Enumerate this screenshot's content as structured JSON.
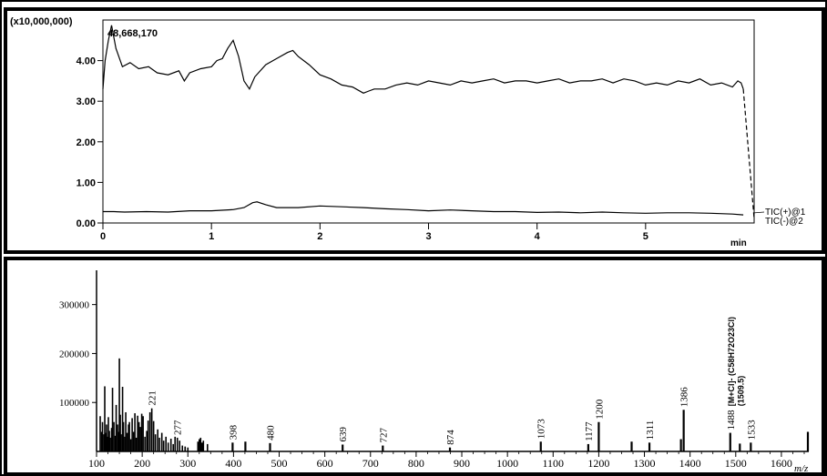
{
  "chart_data": [
    {
      "type": "line",
      "title": "",
      "xlabel": "min",
      "ylabel": "",
      "y_scale_note": "(x10,000,000)",
      "peak_annotation": "48,668,170",
      "xlim": [
        0,
        6.0
      ],
      "ylim": [
        0,
        5.0
      ],
      "x_ticks": [
        0,
        1,
        2,
        3,
        4,
        5
      ],
      "y_ticks": [
        0,
        1,
        2,
        3,
        4
      ],
      "y_tick_labels": [
        "0.00",
        "1.00",
        "2.00",
        "3.00",
        "4.00"
      ],
      "grid": false,
      "legend_position": "right",
      "series": [
        {
          "name": "TIC(+)@1",
          "x": [
            0.0,
            0.02,
            0.05,
            0.08,
            0.12,
            0.18,
            0.25,
            0.33,
            0.42,
            0.5,
            0.6,
            0.7,
            0.75,
            0.8,
            0.9,
            1.0,
            1.05,
            1.1,
            1.15,
            1.2,
            1.25,
            1.3,
            1.35,
            1.4,
            1.5,
            1.6,
            1.7,
            1.75,
            1.8,
            1.9,
            2.0,
            2.1,
            2.2,
            2.3,
            2.4,
            2.45,
            2.5,
            2.6,
            2.7,
            2.8,
            2.9,
            3.0,
            3.1,
            3.2,
            3.3,
            3.4,
            3.5,
            3.6,
            3.7,
            3.8,
            3.9,
            4.0,
            4.1,
            4.2,
            4.3,
            4.4,
            4.5,
            4.6,
            4.7,
            4.8,
            4.9,
            5.0,
            5.1,
            5.2,
            5.3,
            5.4,
            5.5,
            5.6,
            5.7,
            5.8,
            5.85,
            5.88,
            5.9,
            6.0
          ],
          "y": [
            3.3,
            4.0,
            4.5,
            4.87,
            4.3,
            3.85,
            3.95,
            3.8,
            3.85,
            3.7,
            3.65,
            3.75,
            3.5,
            3.7,
            3.8,
            3.85,
            4.0,
            4.05,
            4.3,
            4.5,
            4.1,
            3.5,
            3.3,
            3.6,
            3.9,
            4.05,
            4.2,
            4.25,
            4.1,
            3.9,
            3.65,
            3.55,
            3.4,
            3.35,
            3.2,
            3.25,
            3.3,
            3.3,
            3.4,
            3.45,
            3.4,
            3.5,
            3.45,
            3.4,
            3.5,
            3.45,
            3.5,
            3.55,
            3.45,
            3.5,
            3.5,
            3.45,
            3.5,
            3.55,
            3.45,
            3.5,
            3.5,
            3.55,
            3.45,
            3.55,
            3.5,
            3.4,
            3.45,
            3.4,
            3.5,
            3.45,
            3.55,
            3.4,
            3.45,
            3.35,
            3.5,
            3.45,
            3.3,
            0.1
          ]
        },
        {
          "name": "TIC(-)@2",
          "x": [
            0.0,
            0.1,
            0.2,
            0.4,
            0.6,
            0.8,
            1.0,
            1.2,
            1.3,
            1.38,
            1.42,
            1.5,
            1.6,
            1.8,
            2.0,
            2.2,
            2.4,
            2.6,
            2.8,
            3.0,
            3.2,
            3.4,
            3.6,
            3.8,
            4.0,
            4.2,
            4.4,
            4.6,
            4.8,
            5.0,
            5.2,
            5.4,
            5.6,
            5.8,
            5.9
          ],
          "y": [
            0.28,
            0.28,
            0.27,
            0.28,
            0.27,
            0.3,
            0.3,
            0.33,
            0.38,
            0.5,
            0.52,
            0.45,
            0.38,
            0.38,
            0.42,
            0.4,
            0.38,
            0.35,
            0.33,
            0.3,
            0.32,
            0.3,
            0.28,
            0.28,
            0.26,
            0.27,
            0.25,
            0.27,
            0.25,
            0.24,
            0.25,
            0.25,
            0.24,
            0.22,
            0.2
          ]
        }
      ]
    },
    {
      "type": "bar",
      "title": "",
      "xlabel": "m/z",
      "ylabel": "",
      "xlim": [
        100,
        1660
      ],
      "ylim": [
        0,
        370000
      ],
      "x_ticks": [
        100,
        200,
        300,
        400,
        500,
        600,
        700,
        800,
        900,
        1000,
        1100,
        1200,
        1300,
        1400,
        1500,
        1600
      ],
      "y_ticks": [
        100000,
        200000,
        300000
      ],
      "grid": false,
      "labeled_peaks": [
        {
          "mz": 221,
          "label": "221"
        },
        {
          "mz": 277,
          "label": "277"
        },
        {
          "mz": 398,
          "label": "398"
        },
        {
          "mz": 480,
          "label": "480"
        },
        {
          "mz": 639,
          "label": "639"
        },
        {
          "mz": 727,
          "label": "727"
        },
        {
          "mz": 874,
          "label": "874"
        },
        {
          "mz": 1073,
          "label": "1073"
        },
        {
          "mz": 1177,
          "label": "1177"
        },
        {
          "mz": 1200,
          "label": "1200"
        },
        {
          "mz": 1311,
          "label": "1311"
        },
        {
          "mz": 1386,
          "label": "1386"
        },
        {
          "mz": 1488,
          "label": "1488"
        },
        {
          "mz": 1533,
          "label": "1533"
        }
      ],
      "extra_annotations": [
        "[M+Cl]- (C58H72O23Cl)",
        "(1509.5)"
      ],
      "peaks_mz": [
        108,
        111,
        113,
        116,
        118,
        120,
        122,
        124,
        126,
        128,
        130,
        133,
        135,
        138,
        141,
        143,
        146,
        148,
        150,
        152,
        154,
        157,
        159,
        162,
        164,
        167,
        170,
        172,
        175,
        178,
        181,
        184,
        187,
        190,
        193,
        196,
        199,
        202,
        206,
        210,
        213,
        217,
        221,
        225,
        229,
        234,
        238,
        243,
        247,
        252,
        257,
        263,
        268,
        272,
        277,
        282,
        288,
        294,
        300,
        322,
        325,
        328,
        331,
        334,
        343,
        398,
        426,
        480,
        639,
        727,
        874,
        1073,
        1177,
        1200,
        1272,
        1311,
        1380,
        1386,
        1488,
        1509,
        1533,
        1658
      ],
      "peaks_intensity": [
        72000,
        40000,
        60000,
        35000,
        133000,
        38000,
        55000,
        30000,
        70000,
        42000,
        28000,
        48000,
        130000,
        60000,
        32000,
        95000,
        55000,
        40000,
        190000,
        75000,
        35000,
        132000,
        60000,
        30000,
        80000,
        38000,
        55000,
        60000,
        25000,
        68000,
        40000,
        78000,
        28000,
        73000,
        60000,
        50000,
        77000,
        72000,
        30000,
        42000,
        63000,
        80000,
        88000,
        62000,
        35000,
        45000,
        28000,
        38000,
        22000,
        30000,
        18000,
        26000,
        15000,
        30000,
        28000,
        22000,
        12000,
        10000,
        8000,
        20000,
        25000,
        28000,
        18000,
        22000,
        15000,
        18000,
        20000,
        17000,
        14000,
        12000,
        8000,
        20000,
        15000,
        60000,
        20000,
        18000,
        25000,
        85000,
        38000,
        16000,
        18000,
        40000
      ]
    }
  ]
}
